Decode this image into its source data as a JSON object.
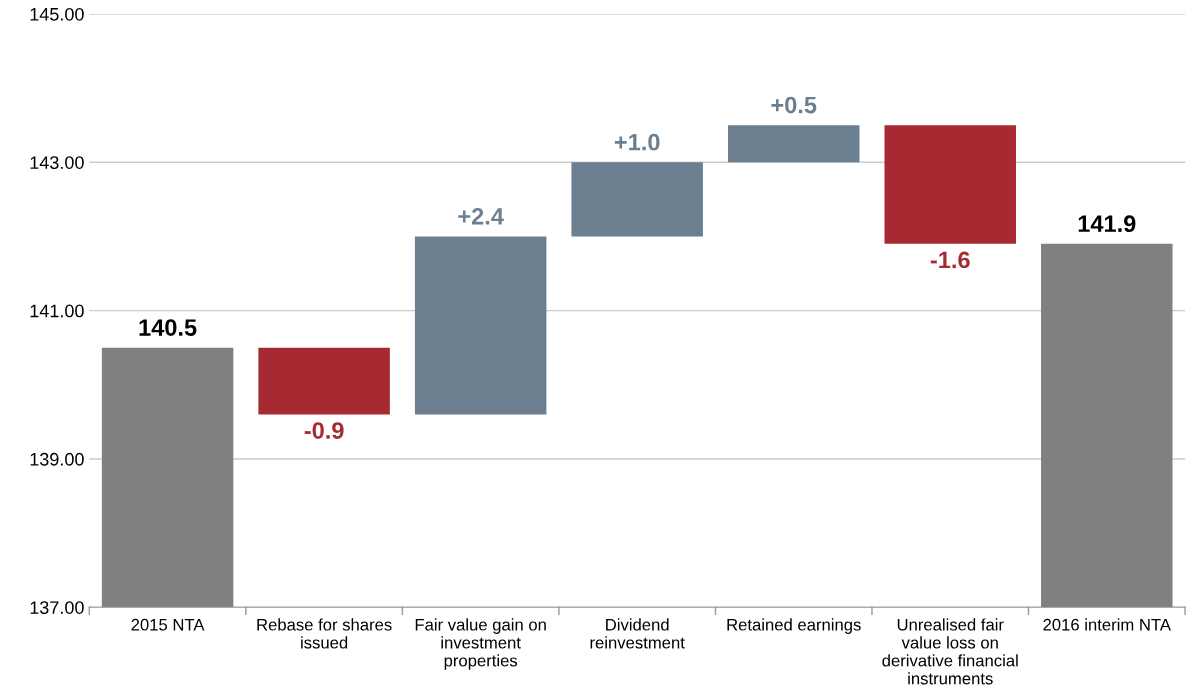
{
  "chart_data": {
    "type": "bar",
    "categories": [
      "2015 NTA",
      "Rebase for shares issued",
      "Fair value gain on investment properties",
      "Dividend reinvestment",
      "Retained earnings",
      "Unrealised fair value loss on derivative financial instruments",
      "2016 interim NTA"
    ],
    "base": [
      137,
      140.5,
      139.6,
      142.0,
      143.0,
      143.5,
      137
    ],
    "values": [
      3.5,
      -0.9,
      2.4,
      1.0,
      0.5,
      -1.6,
      4.9
    ],
    "colors": [
      "#808080",
      "#a72a32",
      "#6b7f91",
      "#6b7f91",
      "#6b7f91",
      "#a72a32",
      "#808080"
    ],
    "value_labels": [
      "140.5",
      "-0.9",
      "+2.4",
      "+1.0",
      "+0.5",
      "-1.6",
      "141.9"
    ],
    "ylim": [
      137,
      145
    ],
    "yticks": [
      {
        "value": 137,
        "label": "137.00"
      },
      {
        "value": 139,
        "label": "139.00"
      },
      {
        "value": 141,
        "label": "141.00"
      },
      {
        "value": 143,
        "label": "143.00"
      },
      {
        "value": 145,
        "label": "145.00"
      }
    ],
    "grid": "y"
  }
}
